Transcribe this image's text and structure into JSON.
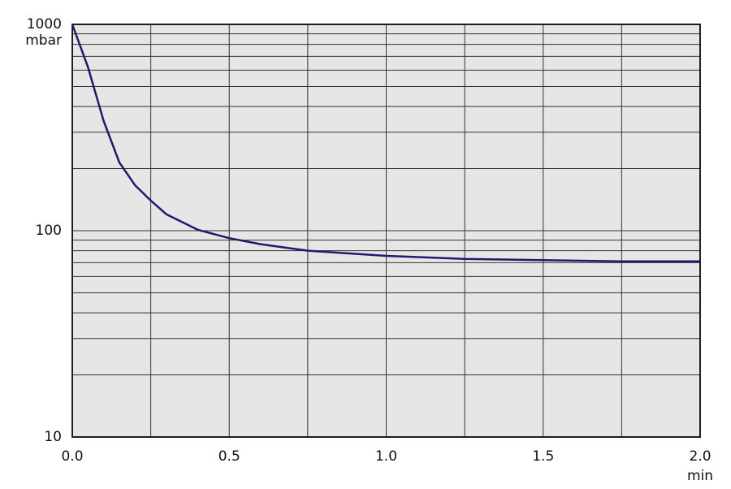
{
  "chart_data": {
    "type": "line",
    "x_unit": "min",
    "y_unit": "mbar",
    "x": [
      0,
      0.05,
      0.1,
      0.15,
      0.2,
      0.25,
      0.3,
      0.4,
      0.5,
      0.6,
      0.75,
      1.0,
      1.25,
      1.5,
      1.75,
      2.0
    ],
    "series": [
      {
        "color": "#1c1c6e",
        "values": [
          1000,
          620,
          340,
          214,
          166,
          140,
          120,
          101,
          92,
          86,
          80,
          75.5,
          73,
          72,
          71,
          71
        ]
      }
    ],
    "xlim": [
      0,
      2.0
    ],
    "xticks": [
      {
        "value": 0,
        "label": "0.0"
      },
      0.5,
      {
        "value": 1,
        "label": "1.0"
      },
      1.5,
      {
        "value": 2,
        "label": "2.0"
      }
    ],
    "minor_xticks": [
      0.25,
      0.75,
      1.25,
      1.75
    ],
    "ylim": [
      10,
      1000
    ],
    "log_y": true,
    "yticks": [
      10,
      100,
      1000
    ],
    "minor_yticks": [
      20,
      30,
      40,
      50,
      60,
      70,
      80,
      90,
      200,
      300,
      400,
      500,
      600,
      700,
      800,
      900
    ],
    "grid": true,
    "background": "#e6e6e6"
  }
}
